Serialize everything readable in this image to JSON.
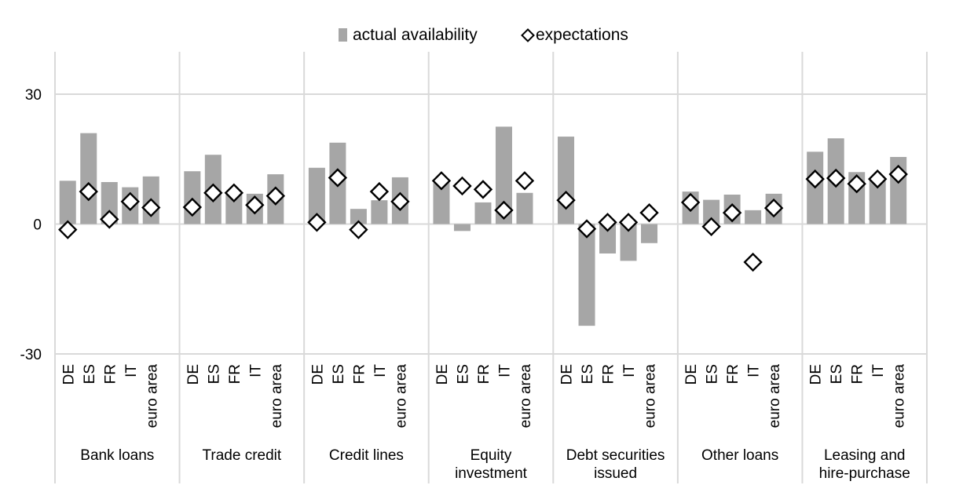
{
  "chart_data": {
    "type": "bar",
    "legend": {
      "position": "top",
      "entries": [
        {
          "key": "actual",
          "label": "actual availability",
          "marker": "bar",
          "color": "#a6a6a6"
        },
        {
          "key": "expectations",
          "label": "expectations",
          "marker": "diamond",
          "color": "#000000"
        }
      ]
    },
    "y_axis": {
      "ticks": [
        30,
        0,
        -30
      ],
      "tick_labels": [
        "30",
        "0",
        "-30"
      ],
      "range": [
        -30,
        40
      ]
    },
    "grid": "horizontal at 30, 0, -30; vertical group separators",
    "groups": [
      {
        "label": [
          "Bank loans"
        ],
        "categories": [
          "DE",
          "ES",
          "FR",
          "IT",
          "euro area"
        ],
        "actual": [
          10,
          21,
          9.7,
          8.5,
          11
        ],
        "expectations": [
          -1.3,
          7.5,
          1.1,
          5.2,
          3.8
        ]
      },
      {
        "label": [
          "Trade credit"
        ],
        "categories": [
          "DE",
          "ES",
          "FR",
          "IT",
          "euro area"
        ],
        "actual": [
          12.2,
          16,
          7,
          7,
          11.5
        ],
        "expectations": [
          3.9,
          7.2,
          7.2,
          4.4,
          6.5
        ]
      },
      {
        "label": [
          "Credit lines"
        ],
        "categories": [
          "DE",
          "ES",
          "FR",
          "IT",
          "euro area"
        ],
        "actual": [
          13,
          18.8,
          3.5,
          5.5,
          10.8
        ],
        "expectations": [
          0.4,
          10.7,
          -1.3,
          7.5,
          5.2
        ]
      },
      {
        "label": [
          "Equity",
          "investment"
        ],
        "categories": [
          "DE",
          "ES",
          "FR",
          "IT",
          "euro area"
        ],
        "actual": [
          9.5,
          -1.6,
          5,
          22.5,
          7.2
        ],
        "expectations": [
          10,
          8.8,
          8,
          3.2,
          10
        ]
      },
      {
        "label": [
          "Debt securities",
          "issued"
        ],
        "categories": [
          "DE",
          "ES",
          "FR",
          "IT",
          "euro area"
        ],
        "actual": [
          20.2,
          -23.5,
          -6.8,
          -8.5,
          -4.4
        ],
        "expectations": [
          5.5,
          -1.1,
          0.4,
          0.4,
          2.6
        ]
      },
      {
        "label": [
          "Other loans"
        ],
        "categories": [
          "DE",
          "ES",
          "FR",
          "IT",
          "euro area"
        ],
        "actual": [
          7.5,
          5.6,
          6.8,
          3.2,
          7
        ],
        "expectations": [
          5,
          -0.6,
          2.6,
          -8.8,
          3.7
        ]
      },
      {
        "label": [
          "Leasing and",
          "hire-purchase"
        ],
        "categories": [
          "DE",
          "ES",
          "FR",
          "IT",
          "euro area"
        ],
        "actual": [
          16.7,
          19.8,
          12,
          10,
          15.5
        ],
        "expectations": [
          10.4,
          10.6,
          9.3,
          10.4,
          11.5
        ]
      }
    ]
  }
}
